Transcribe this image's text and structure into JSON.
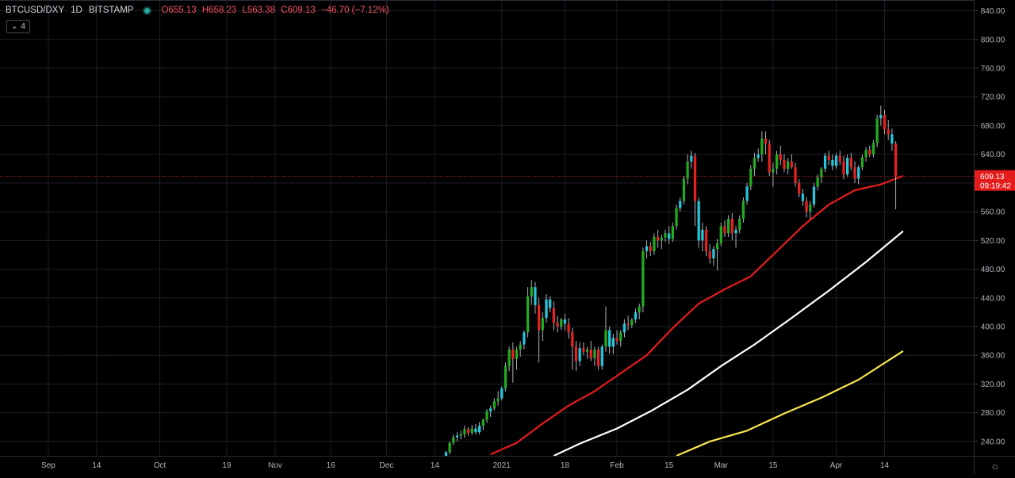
{
  "legend": {
    "symbol": "BTCUSD/DXY",
    "interval": "1D",
    "exchange": "BITSTAMP",
    "open": "O655.13",
    "high": "H658.23",
    "low": "L563.38",
    "close": "C609.13",
    "change": "−46.70 (−7.12%)"
  },
  "indicator_button": {
    "arrow": "⌄",
    "count": "4"
  },
  "price_tag": {
    "price": "609.13",
    "countdown": "09:19:42"
  },
  "settings_icon": "gear-icon",
  "colors": {
    "up": "#22ab22",
    "down": "#e52222",
    "up_alt": "#26c6da",
    "ma_short": "#e61b1b",
    "ma_mid": "#ffffff",
    "ma_long": "#f7e64b",
    "grid": "#1c1f26",
    "last_price": "#e51c1c"
  },
  "chart_data": {
    "type": "line",
    "price_axis_ticks": [
      240,
      280,
      320,
      360,
      400,
      440,
      480,
      520,
      560,
      600,
      640,
      680,
      720,
      760,
      800,
      840
    ],
    "price_axis_labels": [
      "240.00",
      "280.00",
      "320.00",
      "360.00",
      "400.00",
      "440.00",
      "480.00",
      "520.00",
      "560.00",
      "600.00",
      "640.00",
      "680.00",
      "720.00",
      "760.00",
      "800.00",
      "840.00"
    ],
    "time_axis_labels": [
      "Sep",
      "14",
      "Oct",
      "19",
      "Nov",
      "16",
      "Dec",
      "14",
      "2021",
      "18",
      "Feb",
      "15",
      "Mar",
      "15",
      "Apr",
      "14"
    ],
    "time_axis_dates": [
      "2020-09-01",
      "2020-09-14",
      "2020-10-01",
      "2020-10-19",
      "2020-11-01",
      "2020-11-16",
      "2020-12-01",
      "2020-12-14",
      "2021-01-01",
      "2021-01-18",
      "2021-02-01",
      "2021-02-15",
      "2021-03-01",
      "2021-03-15",
      "2021-04-01",
      "2021-04-14"
    ],
    "ylim": [
      220,
      855
    ],
    "xlim": [
      "2020-08-19",
      "2021-05-08"
    ],
    "last_price": 609.13,
    "series": [
      {
        "type": "line",
        "points": [
          [
            "2020-12-29",
            222
          ],
          [
            "2021-01-05",
            238
          ],
          [
            "2021-01-12",
            265
          ],
          [
            "2021-01-19",
            290
          ],
          [
            "2021-01-26",
            310
          ],
          [
            "2021-02-02",
            335
          ],
          [
            "2021-02-09",
            360
          ],
          [
            "2021-02-16",
            398
          ],
          [
            "2021-02-23",
            432
          ],
          [
            "2021-03-02",
            452
          ],
          [
            "2021-03-09",
            470
          ],
          [
            "2021-03-16",
            505
          ],
          [
            "2021-03-23",
            540
          ],
          [
            "2021-03-30",
            570
          ],
          [
            "2021-04-06",
            590
          ],
          [
            "2021-04-13",
            598
          ],
          [
            "2021-04-19",
            610
          ]
        ]
      },
      {
        "type": "line",
        "points": [
          [
            "2021-01-15",
            220
          ],
          [
            "2021-01-22",
            237
          ],
          [
            "2021-02-01",
            258
          ],
          [
            "2021-02-10",
            282
          ],
          [
            "2021-02-20",
            312
          ],
          [
            "2021-03-01",
            345
          ],
          [
            "2021-03-10",
            375
          ],
          [
            "2021-03-20",
            412
          ],
          [
            "2021-03-30",
            450
          ],
          [
            "2021-04-09",
            490
          ],
          [
            "2021-04-19",
            533
          ]
        ]
      },
      {
        "type": "line",
        "points": [
          [
            "2021-02-17",
            220
          ],
          [
            "2021-02-26",
            240
          ],
          [
            "2021-03-08",
            255
          ],
          [
            "2021-03-18",
            279
          ],
          [
            "2021-03-28",
            301
          ],
          [
            "2021-04-07",
            326
          ],
          [
            "2021-04-19",
            366
          ]
        ]
      },
      {
        "type": "candlestick",
        "candles": [
          [
            "2020-12-17",
            210,
            227,
            208,
            225
          ],
          [
            "2020-12-18",
            225,
            240,
            222,
            238
          ],
          [
            "2020-12-19",
            238,
            250,
            235,
            246
          ],
          [
            "2020-12-20",
            246,
            253,
            240,
            248
          ],
          [
            "2020-12-21",
            248,
            255,
            243,
            250
          ],
          [
            "2020-12-22",
            250,
            262,
            245,
            257
          ],
          [
            "2020-12-23",
            257,
            260,
            248,
            252
          ],
          [
            "2020-12-24",
            252,
            263,
            249,
            258
          ],
          [
            "2020-12-25",
            258,
            264,
            250,
            253
          ],
          [
            "2020-12-26",
            253,
            267,
            250,
            262
          ],
          [
            "2020-12-27",
            262,
            272,
            256,
            270
          ],
          [
            "2020-12-28",
            270,
            285,
            266,
            282
          ],
          [
            "2020-12-29",
            282,
            290,
            274,
            286
          ],
          [
            "2020-12-30",
            286,
            300,
            283,
            296
          ],
          [
            "2020-12-31",
            296,
            310,
            290,
            300
          ],
          [
            "2021-01-01",
            300,
            317,
            297,
            314
          ],
          [
            "2021-01-02",
            314,
            350,
            310,
            345
          ],
          [
            "2021-01-03",
            345,
            372,
            338,
            368
          ],
          [
            "2021-01-04",
            368,
            378,
            322,
            355
          ],
          [
            "2021-01-05",
            355,
            372,
            340,
            368
          ],
          [
            "2021-01-06",
            368,
            380,
            358,
            375
          ],
          [
            "2021-01-07",
            375,
            395,
            368,
            392
          ],
          [
            "2021-01-08",
            392,
            455,
            385,
            442
          ],
          [
            "2021-01-09",
            442,
            465,
            430,
            455
          ],
          [
            "2021-01-10",
            455,
            462,
            418,
            430
          ],
          [
            "2021-01-11",
            430,
            440,
            350,
            395
          ],
          [
            "2021-01-12",
            395,
            420,
            380,
            412
          ],
          [
            "2021-01-13",
            412,
            445,
            405,
            438
          ],
          [
            "2021-01-14",
            438,
            442,
            420,
            426
          ],
          [
            "2021-01-15",
            426,
            435,
            395,
            405
          ],
          [
            "2021-01-16",
            405,
            415,
            392,
            400
          ],
          [
            "2021-01-17",
            400,
            412,
            395,
            410
          ],
          [
            "2021-01-18",
            410,
            418,
            395,
            404
          ],
          [
            "2021-01-19",
            404,
            412,
            383,
            392
          ],
          [
            "2021-01-20",
            392,
            398,
            340,
            372
          ],
          [
            "2021-01-21",
            372,
            380,
            338,
            352
          ],
          [
            "2021-01-22",
            352,
            378,
            345,
            370
          ],
          [
            "2021-01-23",
            370,
            378,
            360,
            365
          ],
          [
            "2021-01-24",
            365,
            372,
            355,
            368
          ],
          [
            "2021-01-25",
            368,
            380,
            352,
            356
          ],
          [
            "2021-01-26",
            356,
            372,
            345,
            368
          ],
          [
            "2021-01-27",
            368,
            372,
            340,
            345
          ],
          [
            "2021-01-28",
            345,
            375,
            340,
            372
          ],
          [
            "2021-01-29",
            372,
            428,
            365,
            395
          ],
          [
            "2021-01-30",
            395,
            400,
            362,
            372
          ],
          [
            "2021-01-31",
            372,
            390,
            362,
            384
          ],
          [
            "2021-02-01",
            384,
            395,
            375,
            380
          ],
          [
            "2021-02-02",
            380,
            395,
            372,
            392
          ],
          [
            "2021-02-03",
            392,
            410,
            385,
            404
          ],
          [
            "2021-02-04",
            404,
            415,
            395,
            402
          ],
          [
            "2021-02-05",
            402,
            412,
            398,
            410
          ],
          [
            "2021-02-06",
            410,
            425,
            405,
            420
          ],
          [
            "2021-02-07",
            420,
            432,
            410,
            428
          ],
          [
            "2021-02-08",
            428,
            510,
            420,
            505
          ],
          [
            "2021-02-09",
            505,
            520,
            495,
            512
          ],
          [
            "2021-02-10",
            512,
            518,
            498,
            505
          ],
          [
            "2021-02-11",
            505,
            530,
            500,
            525
          ],
          [
            "2021-02-12",
            525,
            535,
            510,
            520
          ],
          [
            "2021-02-13",
            520,
            528,
            508,
            524
          ],
          [
            "2021-02-14",
            524,
            535,
            518,
            530
          ],
          [
            "2021-02-15",
            530,
            540,
            515,
            522
          ],
          [
            "2021-02-16",
            522,
            545,
            518,
            540
          ],
          [
            "2021-02-17",
            540,
            570,
            535,
            565
          ],
          [
            "2021-02-18",
            565,
            580,
            560,
            575
          ],
          [
            "2021-02-19",
            575,
            610,
            570,
            606
          ],
          [
            "2021-02-20",
            606,
            640,
            598,
            630
          ],
          [
            "2021-02-21",
            630,
            645,
            620,
            638
          ],
          [
            "2021-02-22",
            638,
            642,
            540,
            575
          ],
          [
            "2021-02-23",
            575,
            580,
            510,
            520
          ],
          [
            "2021-02-24",
            520,
            545,
            505,
            535
          ],
          [
            "2021-02-25",
            535,
            540,
            498,
            505
          ],
          [
            "2021-02-26",
            505,
            515,
            488,
            495
          ],
          [
            "2021-02-27",
            495,
            512,
            485,
            508
          ],
          [
            "2021-02-28",
            508,
            522,
            478,
            516
          ],
          [
            "2021-03-01",
            516,
            545,
            512,
            540
          ],
          [
            "2021-03-02",
            540,
            548,
            525,
            530
          ],
          [
            "2021-03-03",
            530,
            555,
            525,
            550
          ],
          [
            "2021-03-04",
            550,
            558,
            520,
            530
          ],
          [
            "2021-03-05",
            530,
            540,
            510,
            535
          ],
          [
            "2021-03-06",
            535,
            555,
            530,
            550
          ],
          [
            "2021-03-07",
            550,
            580,
            545,
            575
          ],
          [
            "2021-03-08",
            575,
            600,
            570,
            595
          ],
          [
            "2021-03-09",
            595,
            625,
            590,
            620
          ],
          [
            "2021-03-10",
            620,
            642,
            610,
            635
          ],
          [
            "2021-03-11",
            635,
            648,
            630,
            640
          ],
          [
            "2021-03-12",
            640,
            672,
            630,
            662
          ],
          [
            "2021-03-13",
            662,
            672,
            640,
            655
          ],
          [
            "2021-03-14",
            655,
            660,
            610,
            615
          ],
          [
            "2021-03-15",
            615,
            628,
            595,
            620
          ],
          [
            "2021-03-16",
            620,
            645,
            612,
            640
          ],
          [
            "2021-03-17",
            640,
            652,
            625,
            632
          ],
          [
            "2021-03-18",
            632,
            640,
            615,
            620
          ],
          [
            "2021-03-19",
            620,
            635,
            612,
            630
          ],
          [
            "2021-03-20",
            630,
            640,
            620,
            622
          ],
          [
            "2021-03-21",
            622,
            628,
            595,
            600
          ],
          [
            "2021-03-22",
            600,
            605,
            580,
            585
          ],
          [
            "2021-03-23",
            585,
            592,
            568,
            575
          ],
          [
            "2021-03-24",
            575,
            580,
            552,
            560
          ],
          [
            "2021-03-25",
            560,
            575,
            550,
            570
          ],
          [
            "2021-03-26",
            570,
            600,
            566,
            595
          ],
          [
            "2021-03-27",
            595,
            612,
            590,
            608
          ],
          [
            "2021-03-28",
            608,
            622,
            600,
            620
          ],
          [
            "2021-03-29",
            620,
            642,
            615,
            638
          ],
          [
            "2021-03-30",
            638,
            645,
            625,
            632
          ],
          [
            "2021-03-31",
            632,
            640,
            618,
            624
          ],
          [
            "2021-04-01",
            624,
            642,
            620,
            638
          ],
          [
            "2021-04-02",
            638,
            645,
            625,
            630
          ],
          [
            "2021-04-03",
            630,
            638,
            605,
            612
          ],
          [
            "2021-04-04",
            612,
            640,
            608,
            635
          ],
          [
            "2021-04-05",
            635,
            642,
            618,
            622
          ],
          [
            "2021-04-06",
            622,
            630,
            600,
            606
          ],
          [
            "2021-04-07",
            606,
            625,
            598,
            622
          ],
          [
            "2021-04-08",
            622,
            640,
            618,
            636
          ],
          [
            "2021-04-09",
            636,
            650,
            630,
            646
          ],
          [
            "2021-04-10",
            646,
            652,
            636,
            640
          ],
          [
            "2021-04-11",
            640,
            660,
            636,
            656
          ],
          [
            "2021-04-12",
            656,
            695,
            650,
            690
          ],
          [
            "2021-04-13",
            690,
            708,
            680,
            695
          ],
          [
            "2021-04-14",
            695,
            702,
            668,
            675
          ],
          [
            "2021-04-15",
            675,
            688,
            660,
            668
          ],
          [
            "2021-04-16",
            668,
            676,
            645,
            655
          ],
          [
            "2021-04-17",
            655,
            658.23,
            563.38,
            609.13
          ]
        ]
      }
    ]
  }
}
